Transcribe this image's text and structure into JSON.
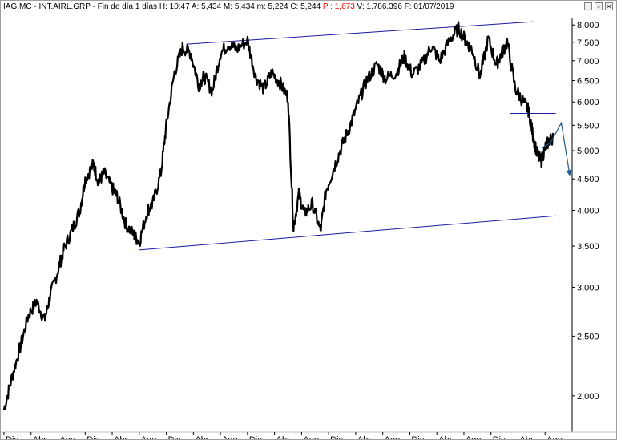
{
  "window": {
    "title_parts": {
      "prefix": "IAG.MC - INT.AIRL.GRP - Fin de día 1 días  H: 10:47  A: 5,434  M: 5,434  m: 5,224  C: 5,244  ",
      "change": "P : 1,673",
      "suffix": "  V: 1.786.396  F: 01/07/2019"
    },
    "buttons": {
      "minimize": "_",
      "restore": "▫",
      "close": "×"
    }
  },
  "colors": {
    "price": "#000000",
    "trendline": "#1a1aa0",
    "projection": "#1e5a8c",
    "change_text": "#ff0000"
  },
  "chart_data": {
    "type": "line",
    "title": "",
    "xlabel": "",
    "ylabel": "",
    "y_scale": "log",
    "ylim": [
      1.8,
      8.2
    ],
    "y_ticks": [
      "8,000",
      "7,500",
      "7,000",
      "6,500",
      "6,000",
      "5,500",
      "5,000",
      "4,500",
      "4,000",
      "3,500",
      "3,000",
      "2,500",
      "2,000"
    ],
    "y_tick_values": [
      8.0,
      7.5,
      7.0,
      6.5,
      6.0,
      5.5,
      5.0,
      4.5,
      4.0,
      3.5,
      3.0,
      2.5,
      2.0
    ],
    "x_ticks": [
      "Dic",
      "Abr",
      "Ago",
      "Dic",
      "Abr",
      "Ago",
      "Dic",
      "Abr",
      "Ago",
      "Dic",
      "Abr",
      "Ago",
      "Dic",
      "Abr",
      "Ago",
      "Dic",
      "Abr",
      "Ago",
      "Dic",
      "Abr",
      "Ago"
    ],
    "x_range": [
      0,
      21
    ],
    "series": [
      {
        "x": [
          0.0,
          0.3,
          0.6,
          0.9,
          1.2,
          1.5,
          1.7,
          2.0,
          2.2,
          2.5,
          2.8,
          3.0,
          3.3,
          3.5,
          3.7,
          4.0,
          4.2,
          4.5,
          4.8,
          5.0,
          5.3,
          5.5,
          5.8,
          6.0,
          6.3,
          6.6,
          6.9,
          7.2,
          7.4,
          7.7,
          8.0,
          8.3,
          8.6,
          9.0,
          9.3,
          9.6,
          9.9,
          10.2,
          10.5,
          10.7,
          10.9,
          11.1,
          11.4,
          11.7,
          11.9,
          12.2,
          12.5,
          12.8,
          13.1,
          13.4,
          13.8,
          14.1,
          14.5,
          14.8,
          15.1,
          15.5,
          15.8,
          16.1,
          16.5,
          16.8,
          17.1,
          17.3,
          17.6,
          17.9,
          18.2,
          18.4,
          18.6,
          18.9,
          19.2,
          19.4
        ],
        "values": [
          1.9,
          2.15,
          2.4,
          2.7,
          2.85,
          2.65,
          2.9,
          3.2,
          3.45,
          3.7,
          4.0,
          4.5,
          4.75,
          4.45,
          4.6,
          4.35,
          4.2,
          3.8,
          3.65,
          3.55,
          4.0,
          4.1,
          4.6,
          5.5,
          6.7,
          7.35,
          7.2,
          6.4,
          6.6,
          6.25,
          7.2,
          7.45,
          7.3,
          7.55,
          6.6,
          6.3,
          6.7,
          6.45,
          6.1,
          3.75,
          4.25,
          3.95,
          4.1,
          3.7,
          4.3,
          4.7,
          5.1,
          5.5,
          6.0,
          6.5,
          6.9,
          6.55,
          6.7,
          7.1,
          6.65,
          6.95,
          7.4,
          7.0,
          7.6,
          7.9,
          7.5,
          7.3,
          6.6,
          7.6,
          6.9,
          7.2,
          7.5,
          6.3,
          6.0,
          5.8
        ]
      },
      {
        "x": [
          19.4,
          19.55,
          19.7,
          19.85,
          20.0,
          20.15,
          20.3
        ],
        "values": [
          5.8,
          5.3,
          4.95,
          4.8,
          5.05,
          5.2,
          5.25
        ]
      }
    ],
    "trendlines": [
      {
        "x": [
          6.8,
          19.6
        ],
        "values": [
          7.45,
          8.1
        ]
      },
      {
        "x": [
          5.0,
          20.4
        ],
        "values": [
          3.45,
          3.92
        ]
      },
      {
        "x": [
          18.7,
          20.4
        ],
        "values": [
          5.75,
          5.75
        ]
      }
    ],
    "projection": {
      "x": [
        19.9,
        20.2,
        20.6,
        20.9
      ],
      "values": [
        5.05,
        5.15,
        5.55,
        4.6
      ]
    },
    "grid": false
  }
}
